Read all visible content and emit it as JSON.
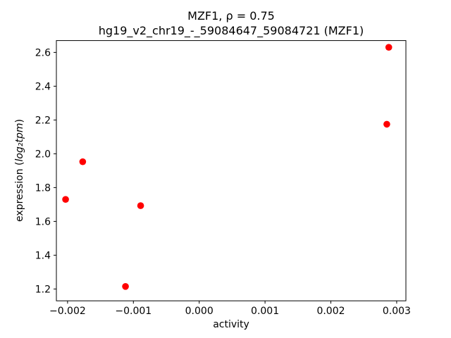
{
  "chart_data": {
    "type": "scatter",
    "title": "MZF1, ρ = 0.75",
    "subtitle": "hg19_v2_chr19_-_59084647_59084721 (MZF1)",
    "xlabel": "activity",
    "ylabel": "expression (log₂tpm)",
    "ylabel_parts": {
      "prefix": "expression (",
      "math": "log₂tpm",
      "suffix": ")"
    },
    "marker_color": "#ff0000",
    "marker_radius": 4.8,
    "xlim": [
      -0.00217,
      0.00314
    ],
    "ylim": [
      1.13,
      2.67
    ],
    "xticks": [
      -0.002,
      -0.001,
      0.0,
      0.001,
      0.002,
      0.003
    ],
    "xtick_labels": [
      "−0.002",
      "−0.001",
      "0.000",
      "0.001",
      "0.002",
      "0.003"
    ],
    "yticks": [
      1.2,
      1.4,
      1.6,
      1.8,
      2.0,
      2.2,
      2.4,
      2.6
    ],
    "ytick_labels": [
      "1.2",
      "1.4",
      "1.6",
      "1.8",
      "2.0",
      "2.2",
      "2.4",
      "2.6"
    ],
    "points": [
      [
        -0.00203,
        1.73
      ],
      [
        -0.00177,
        1.953
      ],
      [
        -0.00112,
        1.215
      ],
      [
        -0.00089,
        1.693
      ],
      [
        0.00285,
        2.175
      ],
      [
        0.00288,
        2.63
      ]
    ],
    "legend": "none",
    "grid": false
  }
}
